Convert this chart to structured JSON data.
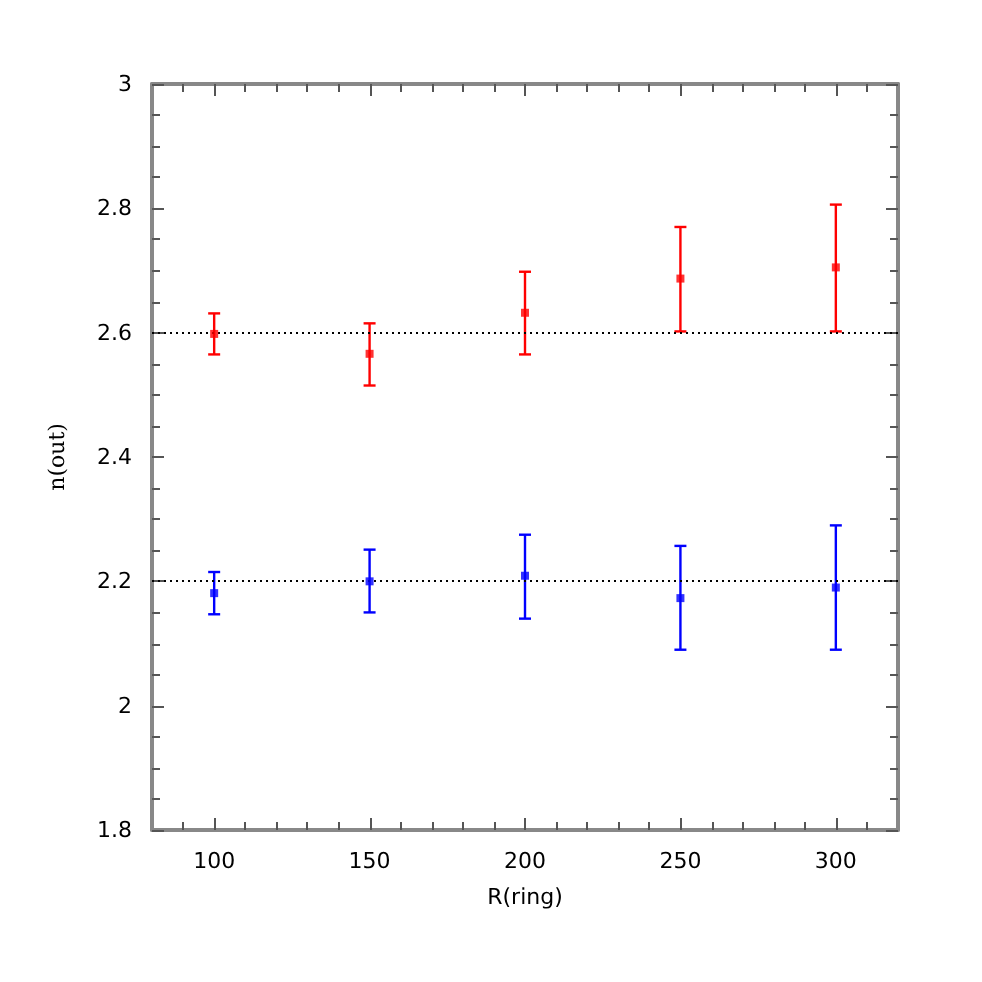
{
  "chart_data": {
    "type": "scatter",
    "xlabel": "R(ring)",
    "ylabel": "n(out)",
    "x": [
      100,
      150,
      200,
      250,
      300
    ],
    "series": [
      {
        "color": "#ff0000",
        "values": [
          2.598,
          2.566,
          2.632,
          2.687,
          2.705
        ],
        "errors": [
          [
            2.565,
            2.631
          ],
          [
            2.515,
            2.615
          ],
          [
            2.565,
            2.698
          ],
          [
            2.602,
            2.77
          ],
          [
            2.602,
            2.806
          ]
        ]
      },
      {
        "color": "#0000ff",
        "values": [
          2.181,
          2.2,
          2.209,
          2.173,
          2.19
        ],
        "errors": [
          [
            2.147,
            2.215
          ],
          [
            2.15,
            2.251
          ],
          [
            2.14,
            2.275
          ],
          [
            2.09,
            2.257
          ],
          [
            2.09,
            2.29
          ]
        ]
      }
    ],
    "xlim": [
      80,
      320
    ],
    "xticks": [
      100,
      150,
      200,
      250,
      300
    ],
    "ylim": [
      1.8,
      3
    ],
    "yticks": [
      1.8,
      2,
      2.2,
      2.4,
      2.6,
      2.8,
      3
    ],
    "ref_lines": [
      {
        "axis": "y",
        "value": 2.6,
        "color": "#000000",
        "line_style": "dotted"
      },
      {
        "axis": "y",
        "value": 2.2,
        "color": "#000000",
        "line_style": "dotted"
      }
    ],
    "marker": "square",
    "grid": false
  }
}
